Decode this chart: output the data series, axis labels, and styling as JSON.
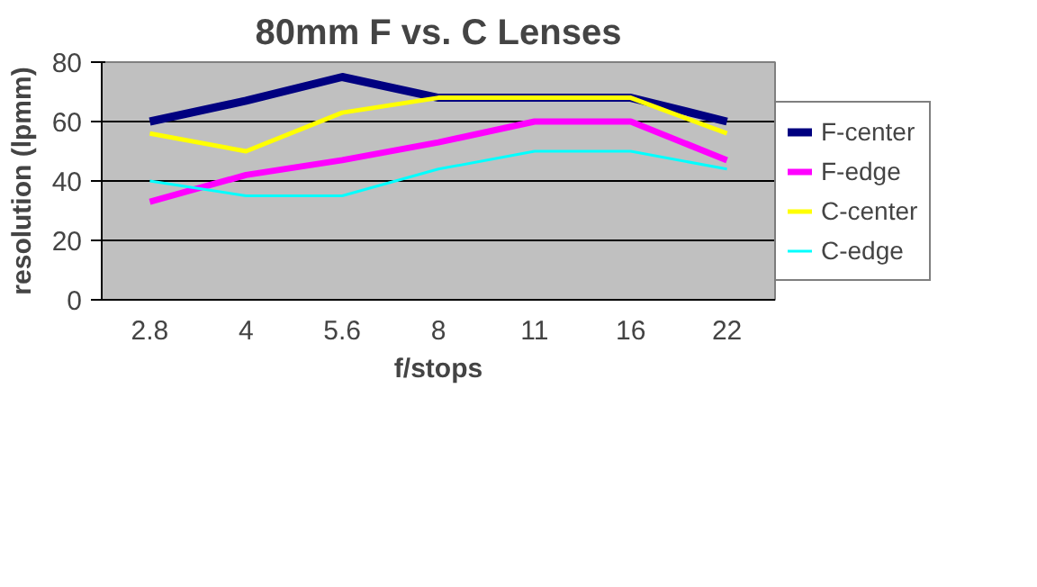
{
  "chart_data": {
    "type": "line",
    "title": "80mm F vs. C Lenses",
    "xlabel": "f/stops",
    "ylabel": "resolution (lpmm)",
    "categories": [
      "2.8",
      "4",
      "5.6",
      "8",
      "11",
      "16",
      "22"
    ],
    "series": [
      {
        "name": "F-center",
        "color": "#000080",
        "values": [
          60,
          67,
          75,
          68,
          68,
          68,
          60
        ]
      },
      {
        "name": "F-edge",
        "color": "#ff00ff",
        "values": [
          33,
          42,
          47,
          53,
          60,
          60,
          47
        ]
      },
      {
        "name": "C-center",
        "color": "#ffff00",
        "values": [
          56,
          50,
          63,
          68,
          68,
          68,
          56
        ]
      },
      {
        "name": "C-edge",
        "color": "#00ffff",
        "values": [
          40,
          35,
          35,
          44,
          50,
          50,
          44
        ]
      }
    ],
    "ylim": [
      0,
      80
    ],
    "yticks": [
      0,
      20,
      40,
      60,
      80
    ],
    "grid": "y",
    "legend": "right",
    "marker": "none",
    "line_style": "solid"
  }
}
